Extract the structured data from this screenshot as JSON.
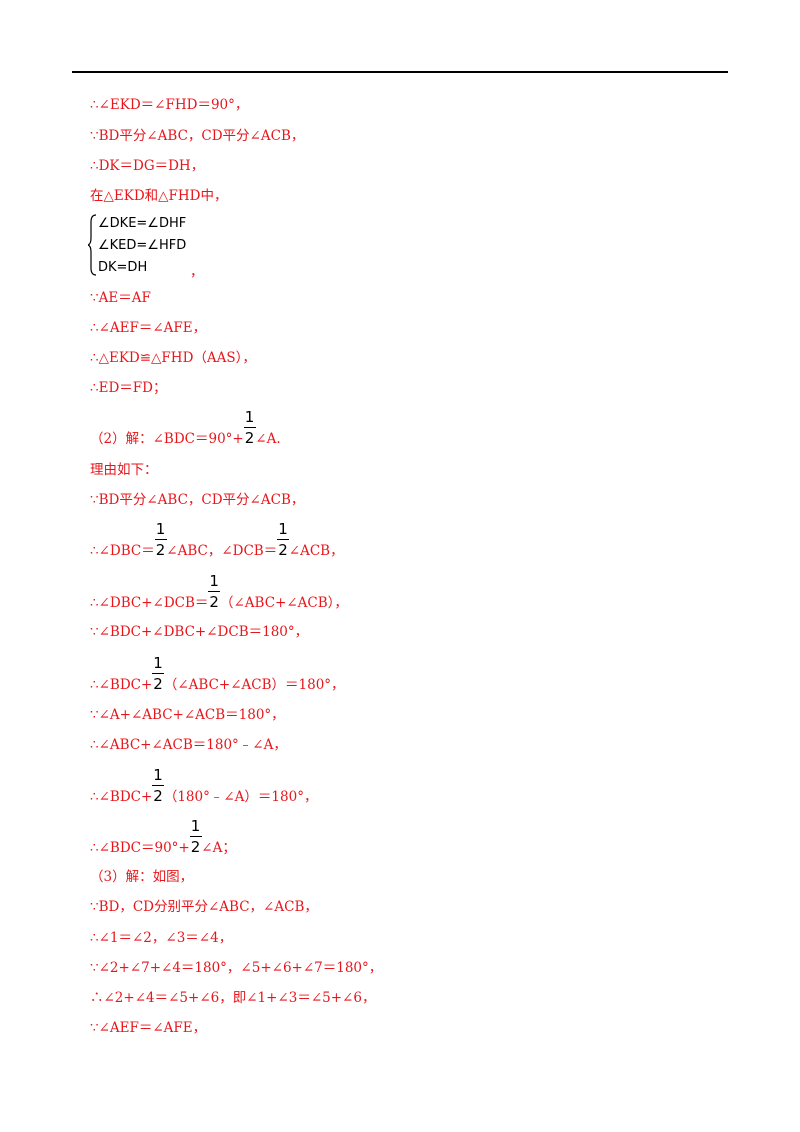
{
  "lines": [
    [
      "∴∠EKD＝∠FHD＝90°，"
    ],
    [
      "∵BD平分∠ABC，CD平分∠ACB，"
    ],
    [
      "∴DK＝DG＝DH，"
    ],
    [
      "在△EKD和△FHD中，"
    ],
    [
      "∵AE＝AF"
    ],
    [
      "∴∠AEF＝∠AFE，"
    ],
    [
      "∴△EKD≌△FHD（AAS），"
    ],
    [
      "∴ED＝FD；"
    ],
    [
      "（2）解：∠BDC＝90°+",
      {
        "num": "1",
        "den": "2"
      },
      "∠A."
    ],
    [
      "理由如下："
    ],
    [
      "∵BD平分∠ABC，CD平分∠ACB，"
    ],
    [
      "∴∠DBC＝",
      {
        "num": "1",
        "den": "2"
      },
      "∠ABC，∠DCB＝",
      {
        "num": "1",
        "den": "2"
      },
      "∠ACB，"
    ],
    [
      "∴∠DBC+∠DCB＝",
      {
        "num": "1",
        "den": "2"
      },
      "（∠ABC+∠ACB），"
    ],
    [
      "∵∠BDC+∠DBC+∠DCB＝180°，"
    ],
    [
      "∴∠BDC+",
      {
        "num": "1",
        "den": "2"
      },
      "（∠ABC+∠ACB）＝180°，"
    ],
    [
      "∵∠A+∠ABC+∠ACB＝180°，"
    ],
    [
      "∴∠ABC+∠ACB＝180°﹣∠A，"
    ],
    [
      "∴∠BDC+",
      {
        "num": "1",
        "den": "2"
      },
      "（180°﹣∠A）＝180°，"
    ],
    [
      "∴∠BDC＝90°+",
      {
        "num": "1",
        "den": "2"
      },
      "∠A；"
    ],
    [
      "（3）解：如图，"
    ],
    [
      "∵BD，CD分别平分∠ABC，∠ACB，"
    ],
    [
      "∴∠1＝∠2，∠3＝∠4，"
    ],
    [
      "∵∠2+∠7+∠4＝180°，∠5+∠6+∠7＝180°，"
    ],
    [
      "∴∠2+∠4＝∠5+∠6，即∠1+∠3＝∠5+∠6，"
    ],
    [
      "∵∠AEF＝∠AFE，"
    ]
  ],
  "system": {
    "equations": [
      "∠DKE=∠DHF",
      "∠KED=∠HFD",
      "DK=DH"
    ],
    "tail": "，"
  }
}
